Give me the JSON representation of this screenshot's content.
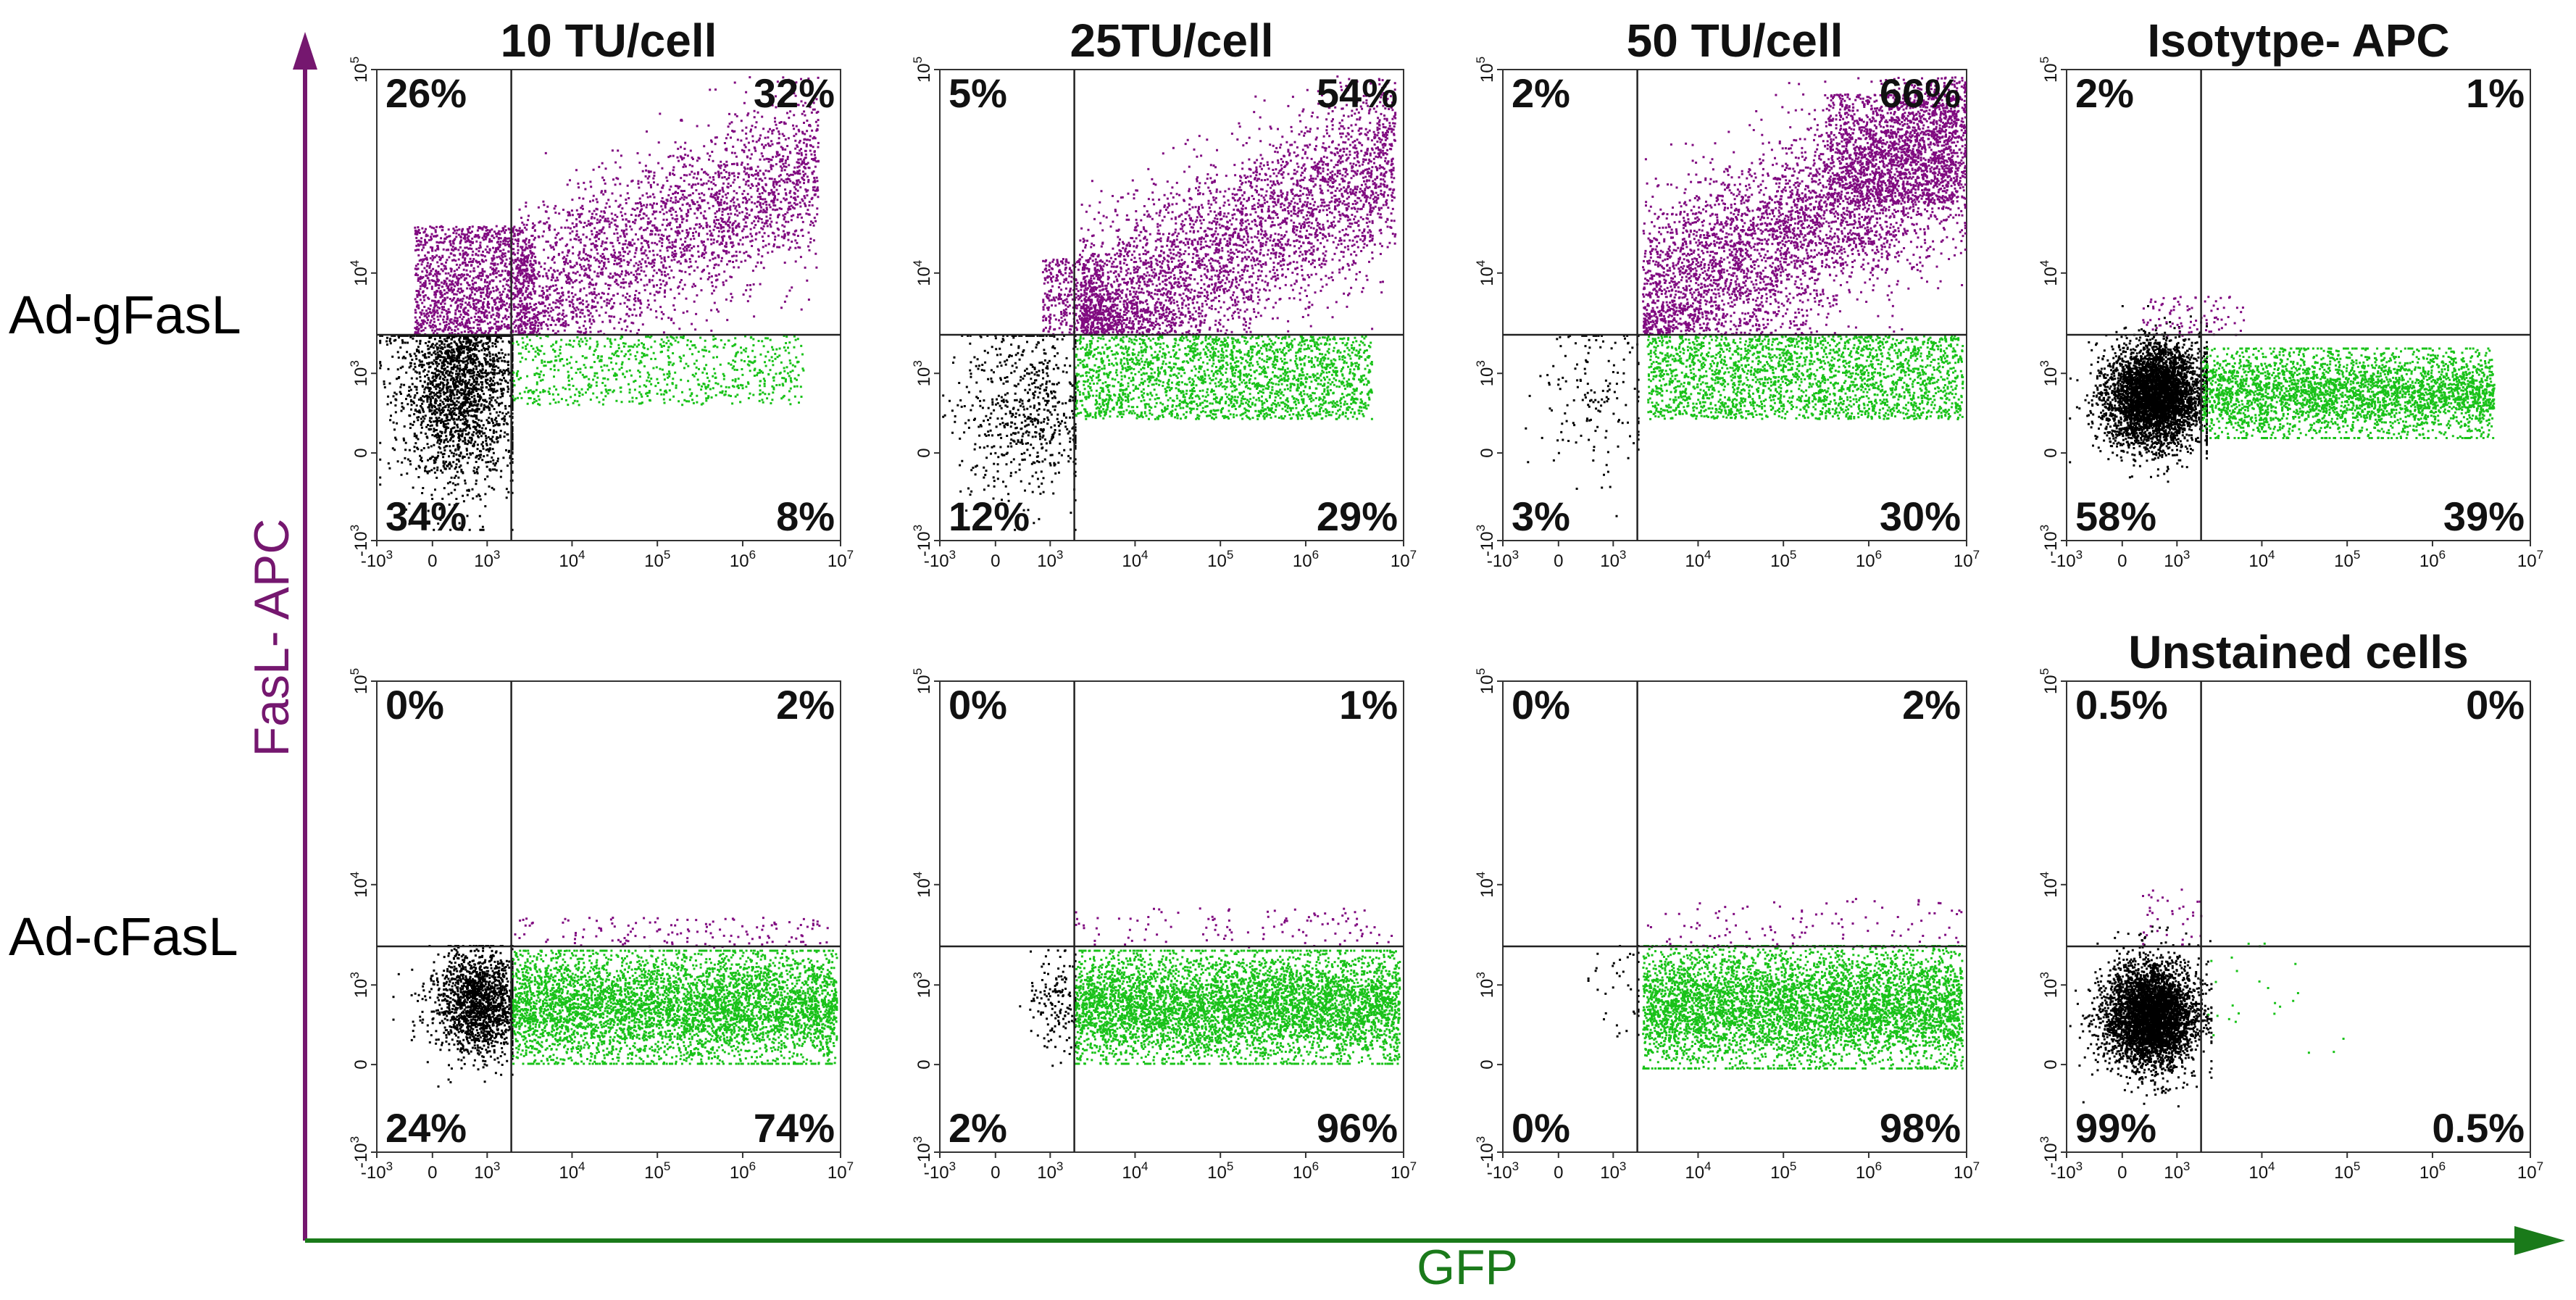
{
  "chart_data": {
    "type": "scatter",
    "description_axes": {
      "x": "GFP",
      "y": "FasL- APC"
    },
    "row_labels": [
      "Ad-gFasL",
      "Ad-cFasL"
    ],
    "x_ticks": [
      "-10^3",
      "0",
      "10^3",
      "10^4",
      "10^5",
      "10^6",
      "10^7"
    ],
    "y_ticks": [
      "-10^3",
      "0",
      "10^3",
      "10^4",
      "10^5"
    ],
    "colors": {
      "double_negative": "#000000",
      "fasl_positive": "#800a80",
      "gfp_positive": "#19c219",
      "y_axis": "#75176f",
      "x_axis": "#1a7a1a"
    },
    "panels": [
      {
        "row": 0,
        "col": 0,
        "title": "10 TU/cell",
        "quadrants": {
          "ul": "26%",
          "ur": "32%",
          "ll": "34%",
          "lr": "8%"
        }
      },
      {
        "row": 0,
        "col": 1,
        "title": "25TU/cell",
        "quadrants": {
          "ul": "5%",
          "ur": "54%",
          "ll": "12%",
          "lr": "29%"
        }
      },
      {
        "row": 0,
        "col": 2,
        "title": "50 TU/cell",
        "quadrants": {
          "ul": "2%",
          "ur": "66%",
          "ll": "3%",
          "lr": "30%"
        }
      },
      {
        "row": 0,
        "col": 3,
        "title": "Isotytpe- APC",
        "quadrants": {
          "ul": "2%",
          "ur": "1%",
          "ll": "58%",
          "lr": "39%"
        }
      },
      {
        "row": 1,
        "col": 0,
        "title": "",
        "quadrants": {
          "ul": "0%",
          "ur": "2%",
          "ll": "24%",
          "lr": "74%"
        }
      },
      {
        "row": 1,
        "col": 1,
        "title": "",
        "quadrants": {
          "ul": "0%",
          "ur": "1%",
          "ll": "2%",
          "lr": "96%"
        }
      },
      {
        "row": 1,
        "col": 2,
        "title": "",
        "quadrants": {
          "ul": "0%",
          "ur": "2%",
          "ll": "0%",
          "lr": "98%"
        }
      },
      {
        "row": 1,
        "col": 3,
        "title": "Unstained cells",
        "quadrants": {
          "ul": "0.5%",
          "ur": "0%",
          "ll": "99%",
          "lr": "0.5%"
        }
      }
    ]
  }
}
